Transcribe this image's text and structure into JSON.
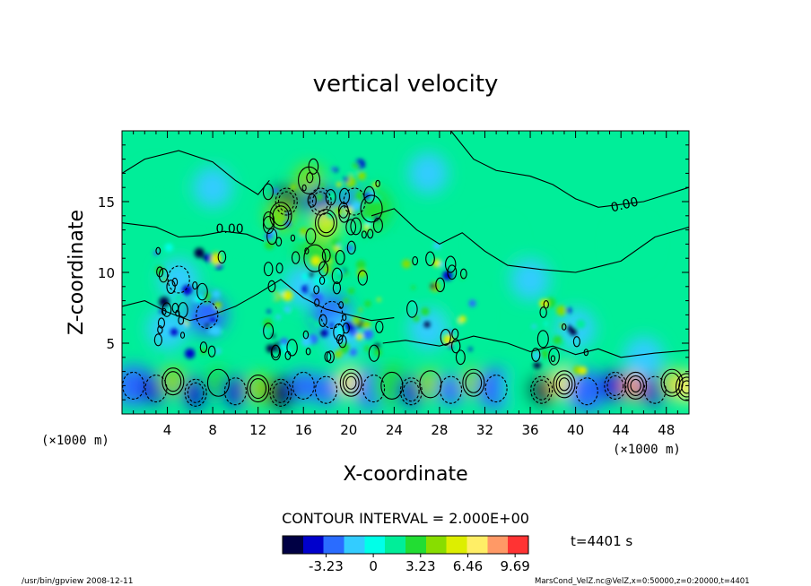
{
  "chart_data": {
    "type": "heatmap",
    "title": "vertical velocity",
    "xlabel": "X-coordinate",
    "ylabel": "Z-coordinate",
    "x_unit": "(×1000 m)",
    "y_unit": "(×1000 m)",
    "xlim": [
      0,
      50
    ],
    "ylim": [
      0,
      20
    ],
    "x_ticks": [
      4,
      8,
      12,
      16,
      20,
      24,
      28,
      32,
      36,
      40,
      44,
      48
    ],
    "y_ticks": [
      5,
      10,
      15
    ],
    "contour_interval_text": "CONTOUR INTERVAL = 2.000E+00",
    "contour_labels": [
      {
        "text": "0.00",
        "x": 9.5,
        "z": 12.8
      },
      {
        "text": "0.00",
        "x": 44.4,
        "z": 14.5
      }
    ],
    "colorbar": {
      "ticks": [
        -3.23,
        0,
        3.23,
        6.46,
        9.69
      ],
      "tick_labels": [
        "-3.23",
        "0",
        "3.23",
        "6.46",
        "9.69"
      ],
      "range": [
        -6.2,
        10.6
      ],
      "colors": [
        "#000044",
        "#0000cc",
        "#2a6cff",
        "#33ccff",
        "#00ffe8",
        "#00ee99",
        "#22dd33",
        "#88dd00",
        "#ddee00",
        "#ffee66",
        "#ff9966",
        "#ff3333"
      ]
    },
    "time_text": "t=4401 s",
    "cells": [
      {
        "x": 1,
        "z": 2,
        "v": -2.6
      },
      {
        "x": 3,
        "z": 1.8,
        "v": -3.6
      },
      {
        "x": 4.5,
        "z": 2.3,
        "v": 4.8
      },
      {
        "x": 6.5,
        "z": 1.5,
        "v": -4.5
      },
      {
        "x": 8.5,
        "z": 2.2,
        "v": 3.2
      },
      {
        "x": 10,
        "z": 1.6,
        "v": -3.6
      },
      {
        "x": 12,
        "z": 1.8,
        "v": 4.8
      },
      {
        "x": 14,
        "z": 1.5,
        "v": -5.0
      },
      {
        "x": 16,
        "z": 2,
        "v": -3.2
      },
      {
        "x": 18,
        "z": 1.7,
        "v": -3.2
      },
      {
        "x": 20.2,
        "z": 2.2,
        "v": 6.5
      },
      {
        "x": 22.2,
        "z": 1.8,
        "v": -2.6
      },
      {
        "x": 23.8,
        "z": 2,
        "v": 3.0
      },
      {
        "x": 25.5,
        "z": 1.6,
        "v": -4.5
      },
      {
        "x": 27.2,
        "z": 2.1,
        "v": 3.6
      },
      {
        "x": 29,
        "z": 1.7,
        "v": -3.2
      },
      {
        "x": 31,
        "z": 2.2,
        "v": 4.2
      },
      {
        "x": 33,
        "z": 1.8,
        "v": -2.6
      },
      {
        "x": 35.3,
        "z": 1.8,
        "v": 1.5
      },
      {
        "x": 37,
        "z": 1.7,
        "v": -5.0
      },
      {
        "x": 39,
        "z": 2.1,
        "v": 6.8
      },
      {
        "x": 41,
        "z": 1.6,
        "v": -2.6
      },
      {
        "x": 43.5,
        "z": 2,
        "v": -4.2
      },
      {
        "x": 45.3,
        "z": 2,
        "v": 8.4
      },
      {
        "x": 47,
        "z": 1.7,
        "v": -3.6
      },
      {
        "x": 48.5,
        "z": 2.2,
        "v": 4.5
      },
      {
        "x": 49.8,
        "z": 1.9,
        "v": 6.8
      },
      {
        "x": 5,
        "z": 9.5,
        "v": -2.0
      },
      {
        "x": 7.5,
        "z": 7,
        "v": -2.3
      },
      {
        "x": 4,
        "z": 6,
        "v": -1.6
      },
      {
        "x": 14.5,
        "z": 15,
        "v": -5.5
      },
      {
        "x": 14,
        "z": 14,
        "v": 4.5
      },
      {
        "x": 16.5,
        "z": 16.5,
        "v": 3.6
      },
      {
        "x": 17.5,
        "z": 15,
        "v": -4.2
      },
      {
        "x": 18,
        "z": 13.5,
        "v": 5.2
      },
      {
        "x": 17,
        "z": 11,
        "v": 2.6
      },
      {
        "x": 18.5,
        "z": 7,
        "v": -3.0
      },
      {
        "x": 20.5,
        "z": 15,
        "v": -3.2
      },
      {
        "x": 22,
        "z": 14.5,
        "v": 2.3
      },
      {
        "x": 16,
        "z": 9,
        "v": -1.6
      },
      {
        "x": 19.5,
        "z": 5.5,
        "v": -1.9
      },
      {
        "x": 27,
        "z": 6,
        "v": -1.3
      },
      {
        "x": 30,
        "z": 7,
        "v": 1.0
      },
      {
        "x": 40,
        "z": 6,
        "v": -1.3
      },
      {
        "x": 38,
        "z": 4,
        "v": 1.3
      },
      {
        "x": 46,
        "z": 4,
        "v": -1.6
      },
      {
        "x": 33,
        "z": 12,
        "v": 0.9
      },
      {
        "x": 36,
        "z": 9.5,
        "v": -1.2
      },
      {
        "x": 45,
        "z": 12,
        "v": 1.0
      },
      {
        "x": 8,
        "z": 16,
        "v": -0.9
      },
      {
        "x": 27,
        "z": 17,
        "v": -0.8
      },
      {
        "x": 10,
        "z": 11,
        "v": 1.2
      },
      {
        "x": 3,
        "z": 16,
        "v": 1.0
      },
      {
        "x": 24,
        "z": 10,
        "v": 0.9
      }
    ]
  },
  "footer": {
    "left": "/usr/bin/gpview   2008-12-11",
    "right": "MarsCond_VelZ.nc@VelZ,x=0:50000,z=0:20000,t=4401"
  }
}
